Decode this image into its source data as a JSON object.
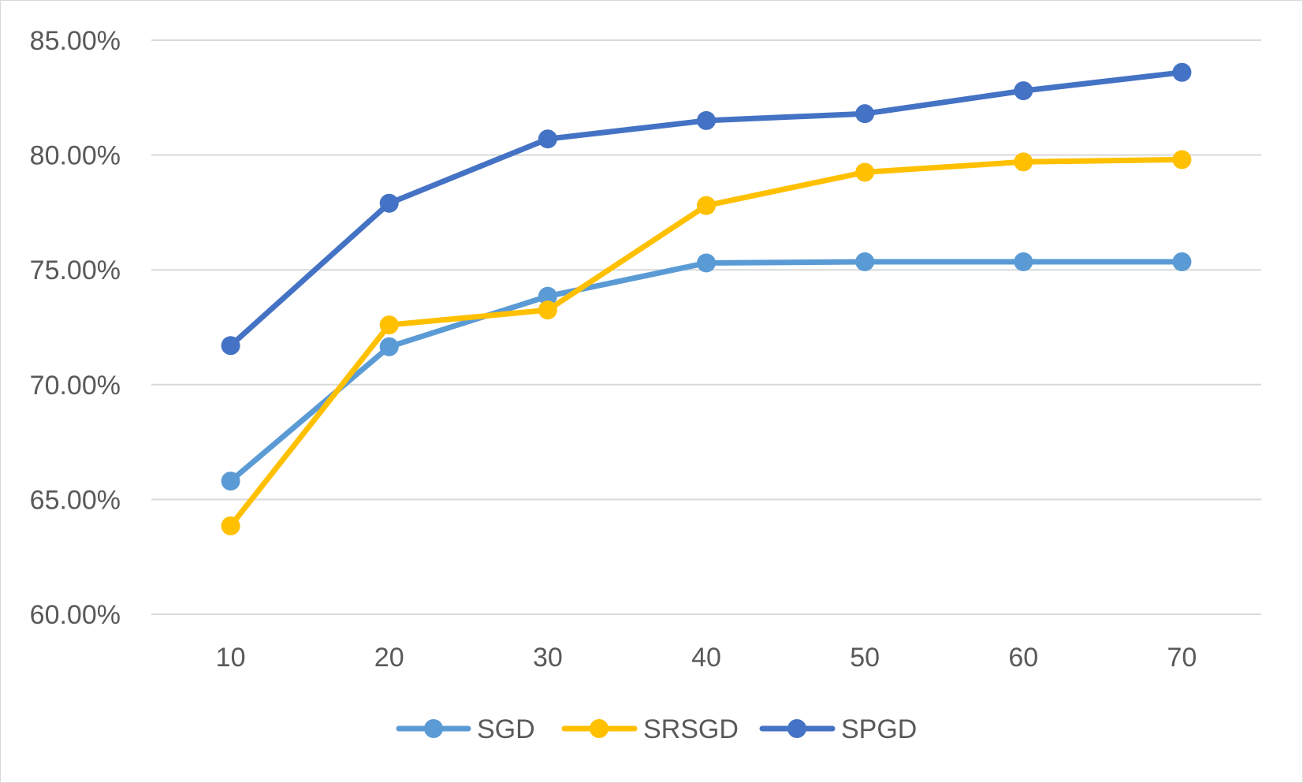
{
  "chart_data": {
    "type": "line",
    "title": "",
    "xlabel": "",
    "ylabel": "",
    "categories": [
      "10",
      "20",
      "30",
      "40",
      "50",
      "60",
      "70"
    ],
    "y_ticks": [
      "60.00%",
      "65.00%",
      "70.00%",
      "75.00%",
      "80.00%",
      "85.00%"
    ],
    "ylim": [
      60,
      85
    ],
    "grid": "horizontal",
    "legend_position": "bottom",
    "series": [
      {
        "name": "SGD",
        "color": "#5B9BD5",
        "values": [
          65.8,
          71.65,
          73.85,
          75.3,
          75.35,
          75.35,
          75.35
        ]
      },
      {
        "name": "SRSGD",
        "color": "#FFC000",
        "values": [
          63.85,
          72.6,
          73.25,
          77.8,
          79.25,
          79.7,
          79.8
        ]
      },
      {
        "name": "SPGD",
        "color": "#4472C4",
        "values": [
          71.7,
          77.9,
          80.7,
          81.5,
          81.8,
          82.8,
          83.6
        ]
      }
    ]
  }
}
